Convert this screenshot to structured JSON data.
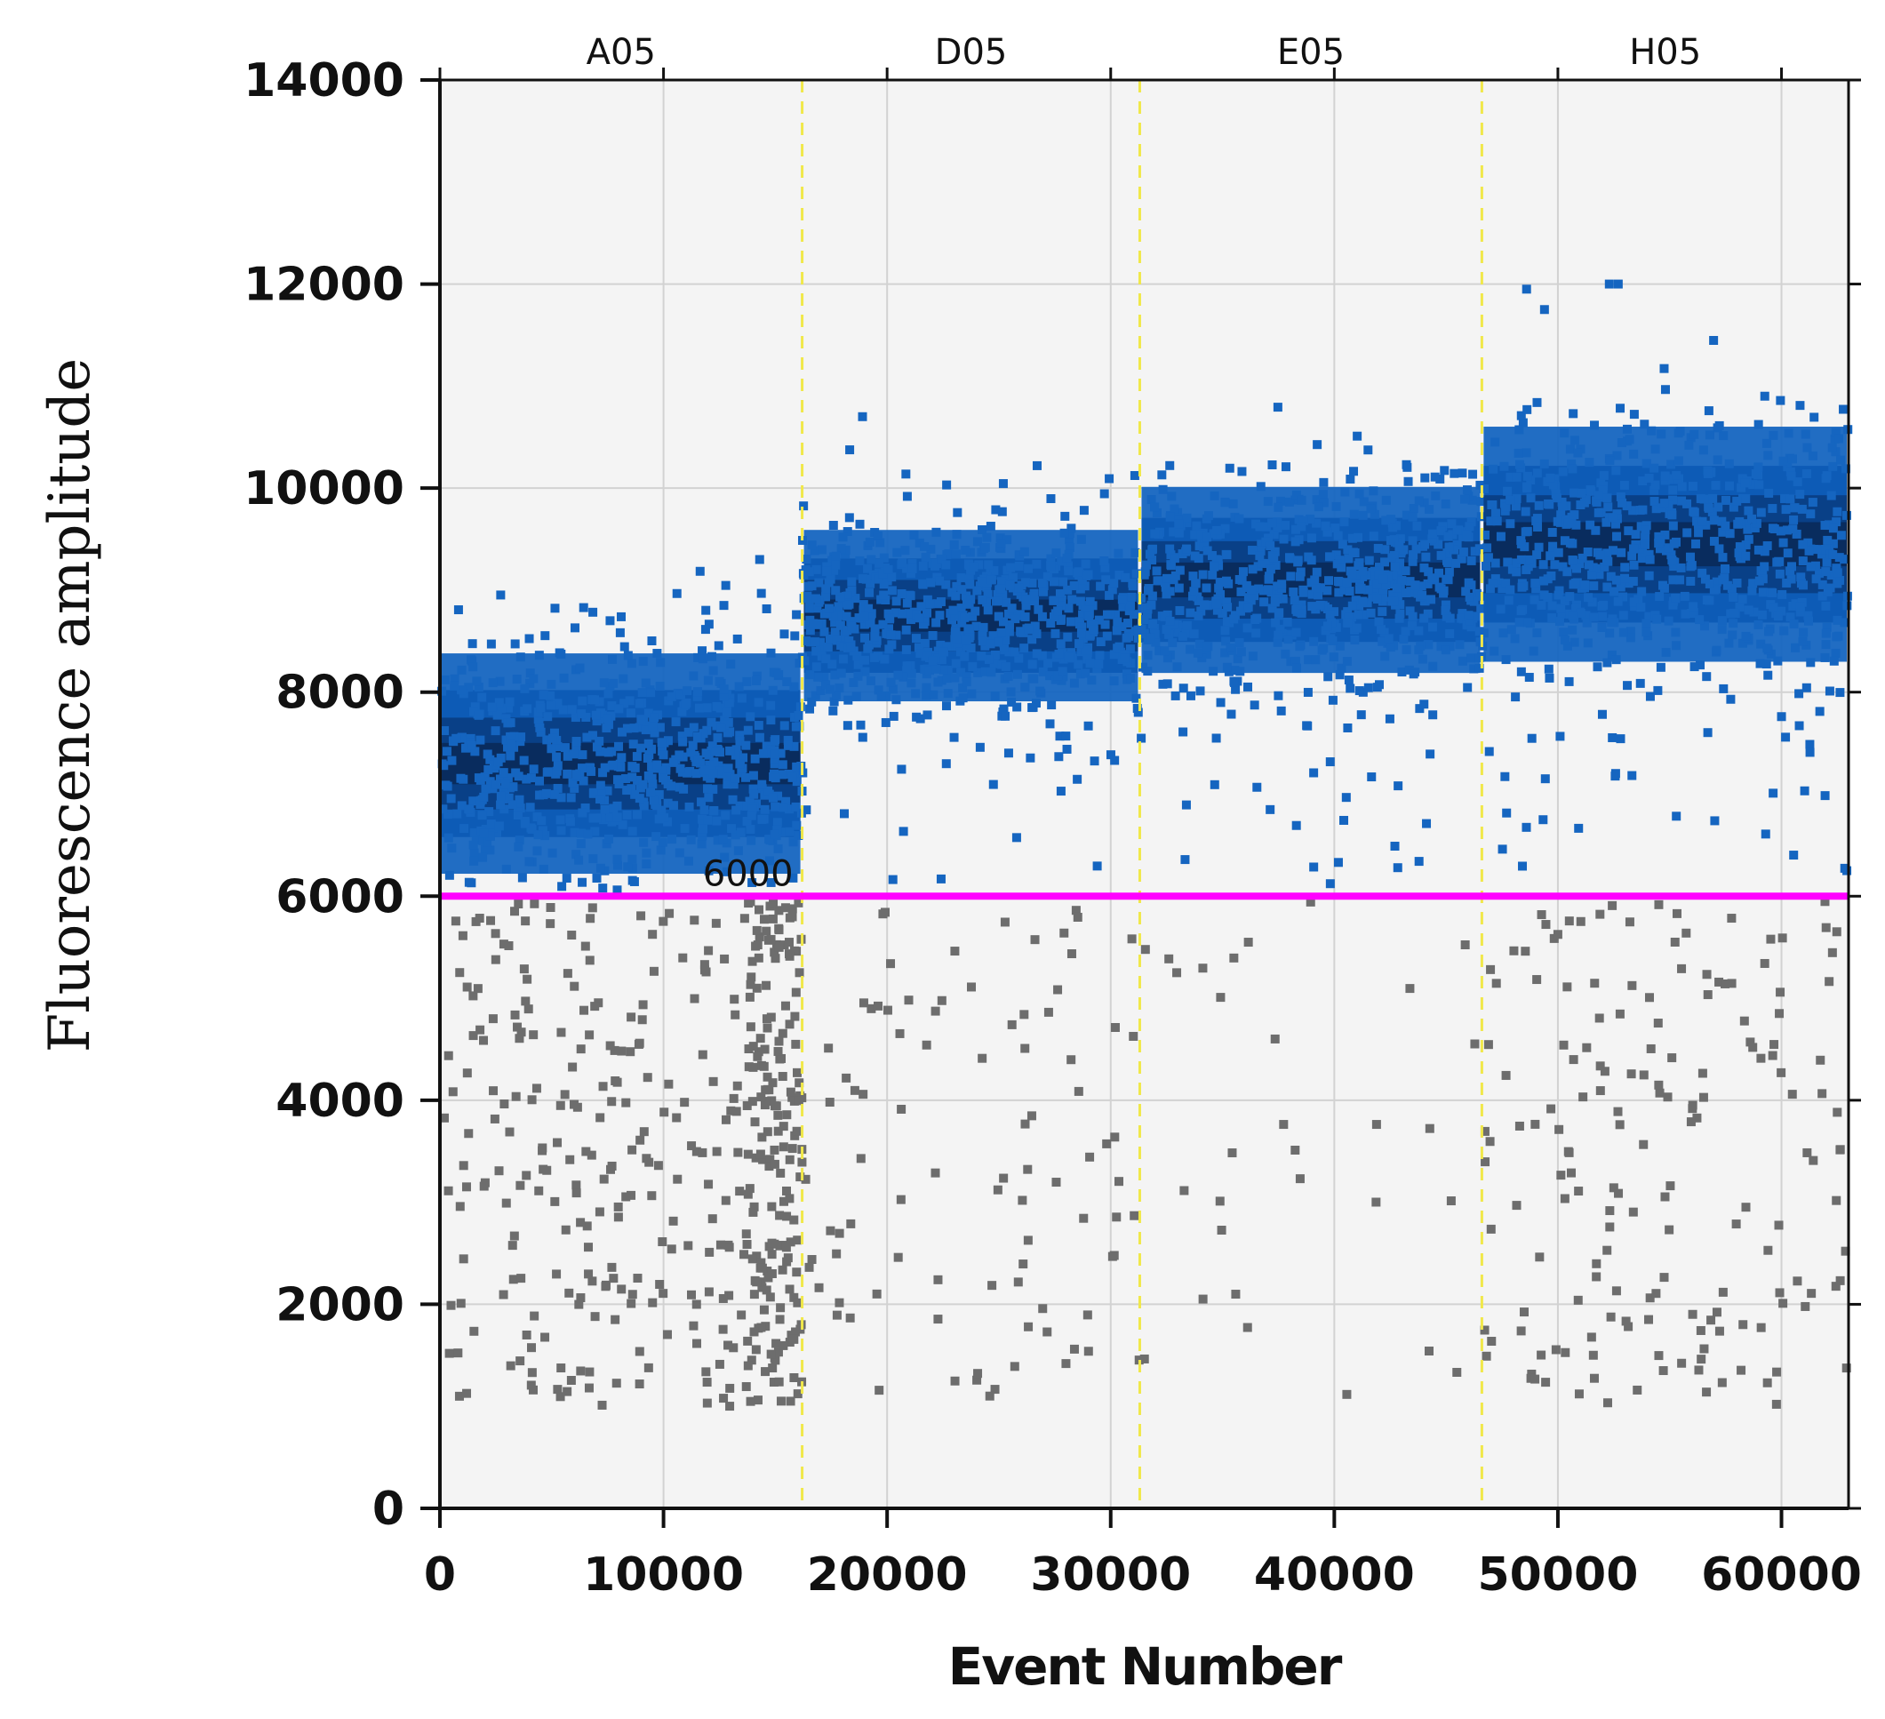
{
  "chart_data": {
    "type": "scatter",
    "title": "",
    "xlabel": "Event Number",
    "ylabel": "Fluorescence amplitude",
    "xlim": [
      0,
      63000
    ],
    "ylim": [
      0,
      14000
    ],
    "xticks": [
      0,
      10000,
      20000,
      30000,
      40000,
      50000,
      60000
    ],
    "yticks": [
      0,
      2000,
      4000,
      6000,
      8000,
      10000,
      12000,
      14000
    ],
    "xtick_labels": [
      "0",
      "10000",
      "20000",
      "30000",
      "40000",
      "50000",
      "60000"
    ],
    "ytick_labels": [
      "0",
      "2000",
      "4000",
      "6000",
      "8000",
      "10000",
      "12000",
      "14000"
    ],
    "grid": true,
    "threshold": {
      "value": 6000,
      "label": "6000",
      "color": "#ff00ff"
    },
    "well_dividers": [
      16200,
      31300,
      46600
    ],
    "wells": [
      {
        "name": "A05",
        "x_start": 0,
        "x_end": 16200,
        "positive_center": 7300,
        "positive_spread": 450,
        "negative_count": 430
      },
      {
        "name": "D05",
        "x_start": 16200,
        "x_end": 31300,
        "positive_center": 8750,
        "positive_spread": 350,
        "negative_count": 90
      },
      {
        "name": "E05",
        "x_start": 31300,
        "x_end": 46600,
        "positive_center": 9100,
        "positive_spread": 380,
        "negative_count": 30
      },
      {
        "name": "H05",
        "x_start": 46600,
        "x_end": 63000,
        "positive_center": 9450,
        "positive_spread": 480,
        "negative_count": 170
      }
    ],
    "series": [
      {
        "name": "",
        "role": "positive droplets",
        "color": "#1565c0",
        "dense_color": "#0a2a5a"
      },
      {
        "name": "",
        "role": "negative droplets",
        "color": "#6d6d6d"
      }
    ],
    "colors": {
      "plot_background": "#f4f4f4",
      "grid": "#d2d2d2",
      "divider": "#f0e84a",
      "axis": "#111111"
    }
  }
}
